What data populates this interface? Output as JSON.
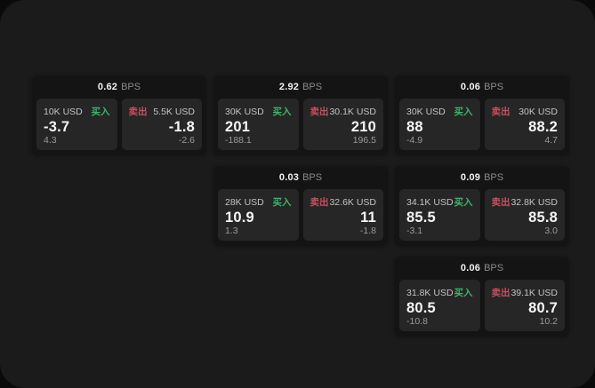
{
  "labels": {
    "bps_unit": "BPS",
    "buy": "买入",
    "sell": "卖出"
  },
  "colors": {
    "screen_bg": "#1b1b1b",
    "card_bg": "#141414",
    "panel_bg": "#262626",
    "buy_green": "#3cb46a",
    "sell_red": "#c7505f",
    "value_white": "#f5f5f5",
    "muted_gray": "#9a9a9a"
  },
  "cards": [
    {
      "bps": "0.62",
      "buy": {
        "size": "10K USD",
        "value": "-3.7",
        "sub": "4.3"
      },
      "sell": {
        "size": "5.5K USD",
        "value": "-1.8",
        "sub": "-2.6"
      }
    },
    {
      "bps": "2.92",
      "buy": {
        "size": "30K USD",
        "value": "201",
        "sub": "-188.1"
      },
      "sell": {
        "size": "30.1K USD",
        "value": "210",
        "sub": "196.5"
      }
    },
    {
      "bps": "0.06",
      "buy": {
        "size": "30K USD",
        "value": "88",
        "sub": "-4.9"
      },
      "sell": {
        "size": "30K USD",
        "value": "88.2",
        "sub": "4.7"
      }
    },
    {
      "bps": "0.03",
      "buy": {
        "size": "28K USD",
        "value": "10.9",
        "sub": "1.3"
      },
      "sell": {
        "size": "32.6K USD",
        "value": "11",
        "sub": "-1.8"
      }
    },
    {
      "bps": "0.09",
      "buy": {
        "size": "34.1K USD",
        "value": "85.5",
        "sub": "-3.1"
      },
      "sell": {
        "size": "32.8K USD",
        "value": "85.8",
        "sub": "3.0"
      }
    },
    {
      "bps": "0.06",
      "buy": {
        "size": "31.8K USD",
        "value": "80.5",
        "sub": "-10.8"
      },
      "sell": {
        "size": "39.1K USD",
        "value": "80.7",
        "sub": "10.2"
      }
    }
  ]
}
